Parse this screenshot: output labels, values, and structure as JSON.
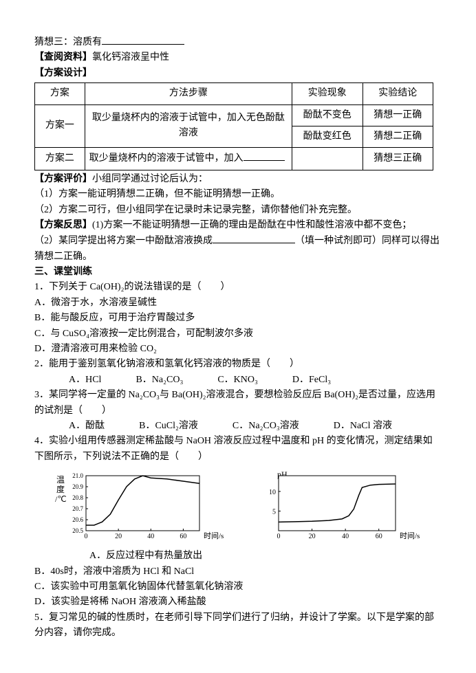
{
  "top": {
    "guess3_prefix": "猜想三：溶质有",
    "lookup_label": "【查阅资料】",
    "lookup_text": "氯化钙溶液呈中性",
    "design_label": "【方案设计】"
  },
  "table": {
    "headers": [
      "方案",
      "方法步骤",
      "实验现象",
      "实验结论"
    ],
    "row1": {
      "plan": "方案一",
      "method": "取少量烧杯内的溶液于试管中，加入无色酚酞溶液",
      "phen1": "酚酞不变色",
      "conc1": "猜想一正确",
      "phen2": "酚酞变红色",
      "conc2": "猜想二正确"
    },
    "row2": {
      "plan": "方案二",
      "method_prefix": "取少量烧杯内的溶液于试管中，加入",
      "conc": "猜想三正确"
    }
  },
  "eval": {
    "label": "【方案评价】",
    "intro": "小组同学通过讨论后认为：",
    "item1": "（1）方案一能证明猜想二正确，但不能证明猜想一正确。",
    "item2": "（2）方案二可行，但小组同学在记录时未记录完整，请你替他们补充完整。"
  },
  "reflect": {
    "label": "【方案反思】",
    "item1": "(1)方案一不能证明猜想一正确的理由是酚酞在中性和酸性溶液中都不变色；",
    "item2_prefix": "（2）某同学提出将方案一中酚酞溶液换成",
    "item2_hint": "（填一种试剂即可）",
    "item2_suffix": "同样可以得出猜想二正确。"
  },
  "section3": "三、课堂训练",
  "q1": {
    "stem": "1．下列关于 Ca(OH)₂的说法错误的是（　　）",
    "A": "A．微溶于水，水溶液呈碱性",
    "B": "B．能与酸反应，可用于治疗胃酸过多",
    "C": "C．与 CuSO₄溶液按一定比例混合，可配制波尔多液",
    "D": "D．澄清溶液可用来检验 CO₂"
  },
  "q2": {
    "stem": "2．能用于鉴别氢氧化钠溶液和氢氧化钙溶液的物质是（　　）",
    "A": "A．HCl",
    "B": "B．Na₂CO₃",
    "C": "C．KNO₃",
    "D": "D．FeCl₃"
  },
  "q3": {
    "stem": "3．某同学将一定量的 Na₂CO₃与 Ba(OH)₂溶液混合，要想检验反应后 Ba(OH)₂是否过量，应选用的试剂是（　　）",
    "A": "A．酚酞",
    "B": "B．CuCl₂溶液",
    "C": "C．Na₂CO₃溶液",
    "D": "D．NaCl 溶液"
  },
  "q4": {
    "stem": "4．实验小组用传感器测定稀盐酸与 NaOH 溶液反应过程中温度和 pH 的变化情况，测定结果如下图所示，下列说法不正确的是（　　）",
    "A": "A．反应过程中有热量放出",
    "B": "B．40s时，溶液中溶质为 HCl 和 NaCl",
    "C": "C．该实验中可用氢氧化钠固体代替氢氧化钠溶液",
    "D": "D．该实验是将稀 NaOH 溶液滴入稀盐酸"
  },
  "chart1": {
    "ylabel_top": "温",
    "ylabel_bot": "度",
    "yunit": "/℃",
    "yticks": [
      "21.0",
      "20.9",
      "20.8",
      "20.7",
      "20.6",
      "20.5"
    ],
    "xticks": [
      "0",
      "20",
      "40",
      "60"
    ],
    "xlabel": "时间/s",
    "line_color": "#000000",
    "bg": "#ffffff",
    "grid_color": "#000000",
    "points": [
      [
        0,
        20.55
      ],
      [
        5,
        20.55
      ],
      [
        10,
        20.58
      ],
      [
        15,
        20.65
      ],
      [
        20,
        20.78
      ],
      [
        25,
        20.9
      ],
      [
        30,
        20.97
      ],
      [
        35,
        21.0
      ],
      [
        40,
        20.98
      ],
      [
        50,
        20.97
      ],
      [
        60,
        20.95
      ],
      [
        70,
        20.93
      ]
    ]
  },
  "chart2": {
    "ylabel": "pH",
    "yticks": [
      "10",
      "5"
    ],
    "xticks": [
      "0",
      "20",
      "40",
      "60"
    ],
    "xlabel": "时间/s",
    "line_color": "#000000",
    "bg": "#ffffff",
    "grid_color": "#000000",
    "points": [
      [
        0,
        2.2
      ],
      [
        10,
        2.3
      ],
      [
        20,
        2.4
      ],
      [
        30,
        2.6
      ],
      [
        38,
        3.0
      ],
      [
        42,
        3.8
      ],
      [
        45,
        5.5
      ],
      [
        48,
        9.0
      ],
      [
        50,
        11.0
      ],
      [
        55,
        11.6
      ],
      [
        60,
        11.8
      ],
      [
        70,
        11.9
      ]
    ]
  },
  "q5": {
    "stem": "5．复习常见的碱的性质时，在老师引导下同学们进行了归纳，并设计了学案。以下是学案的部分内容，请你完成。"
  }
}
